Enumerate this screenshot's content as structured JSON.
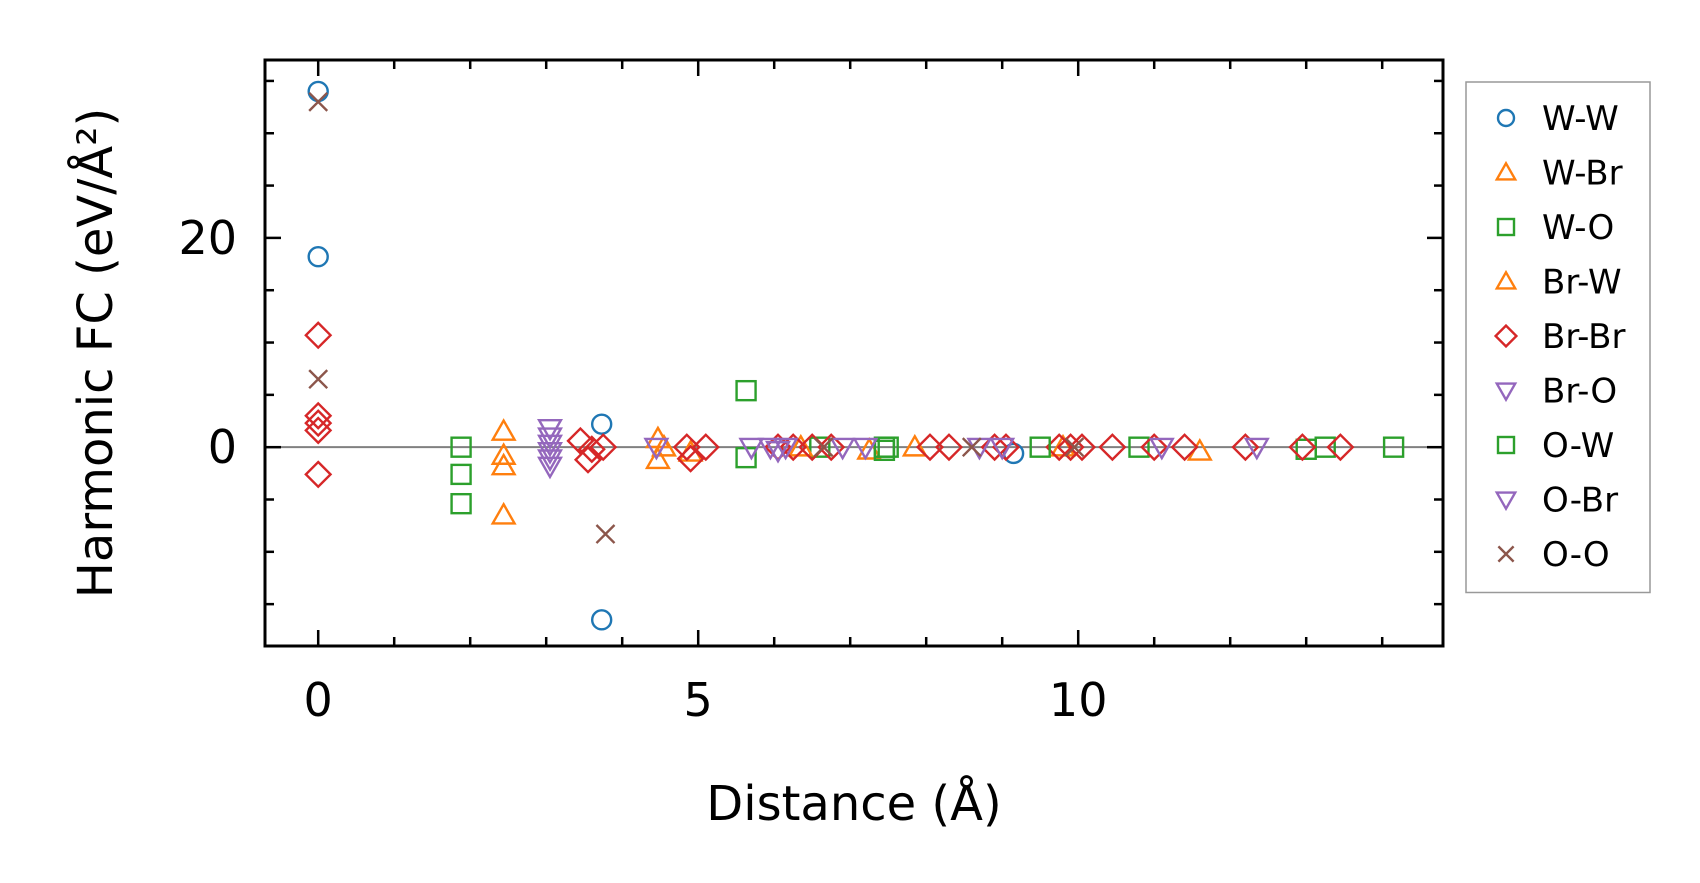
{
  "chart_data": {
    "type": "scatter",
    "xlabel": "Distance (Å)",
    "ylabel": "Harmonic FC (eV/Å²)",
    "xlim": [
      -0.7,
      14.8
    ],
    "ylim": [
      -19,
      37
    ],
    "xticks": [
      0,
      5,
      10
    ],
    "xtick_labels": [
      "0",
      "5",
      "10"
    ],
    "yticks": [
      0,
      20
    ],
    "ytick_labels": [
      "0",
      "20"
    ],
    "x_minor_step": 1,
    "y_minor_step": 5,
    "zero_line": true,
    "grid": false,
    "legend_position": "outside-right",
    "series": [
      {
        "name": "W-W",
        "marker": "circle",
        "color": "#1f77b4",
        "x": [
          0,
          0,
          3.73,
          3.73,
          9.15
        ],
        "y": [
          34,
          18.2,
          2.2,
          -16.5,
          -0.6
        ]
      },
      {
        "name": "W-Br",
        "marker": "triangle-up",
        "color": "#ff7f0e",
        "x": [
          2.44,
          2.44,
          2.44,
          2.44,
          4.47,
          4.47,
          7.25,
          7.85,
          11.6
        ],
        "y": [
          1.5,
          -0.8,
          -1.8,
          -6.5,
          0.8,
          -1.2,
          -0.3,
          0,
          -0.4
        ]
      },
      {
        "name": "W-O",
        "marker": "square",
        "color": "#2ca02c",
        "x": [
          1.88,
          1.88,
          1.88,
          5.63,
          5.63,
          6.6,
          7.45,
          7.45,
          10.8,
          13.0,
          13.25,
          14.15
        ],
        "y": [
          0,
          -2.6,
          -5.4,
          5.4,
          -1.0,
          0,
          0,
          -0.3,
          0,
          -0.2,
          0,
          0
        ]
      },
      {
        "name": "Br-W",
        "marker": "triangle-up",
        "color": "#ff7f0e",
        "x": [
          4.55,
          4.9,
          6.35,
          9.8
        ],
        "y": [
          0,
          -0.5,
          0,
          0
        ]
      },
      {
        "name": "Br-Br",
        "marker": "diamond",
        "color": "#d62728",
        "x": [
          0,
          0,
          0,
          0,
          0,
          3.45,
          3.55,
          3.6,
          3.75,
          4.85,
          4.9,
          5.1,
          6.05,
          6.25,
          6.5,
          6.75,
          8.05,
          8.3,
          8.9,
          9.05,
          9.75,
          9.9,
          10.05,
          10.45,
          11.0,
          11.4,
          12.2,
          12.95,
          13.45
        ],
        "y": [
          10.7,
          3,
          2.3,
          1.6,
          -2.6,
          0.6,
          -1.2,
          -0.2,
          0,
          0,
          -1.1,
          0,
          0,
          0,
          0,
          0,
          0,
          0,
          0,
          0,
          0,
          0,
          0,
          0,
          0,
          0,
          0,
          0,
          0
        ]
      },
      {
        "name": "Br-O",
        "marker": "triangle-down",
        "color": "#9467bd",
        "x": [
          3.05,
          3.05,
          3.05,
          3.05,
          3.05,
          3.05,
          4.45,
          6.15,
          6.9,
          9.0,
          11.1
        ],
        "y": [
          1.8,
          1.0,
          0.3,
          -0.4,
          -1.1,
          -1.8,
          0,
          0,
          0,
          0,
          0
        ]
      },
      {
        "name": "O-W",
        "marker": "square",
        "color": "#2ca02c",
        "x": [
          7.5,
          9.5
        ],
        "y": [
          0,
          0
        ]
      },
      {
        "name": "O-Br",
        "marker": "triangle-down",
        "color": "#9467bd",
        "x": [
          5.7,
          5.95,
          6.05,
          7.2,
          8.7,
          12.35
        ],
        "y": [
          0,
          0,
          -0.3,
          0,
          0,
          0
        ]
      },
      {
        "name": "O-O",
        "marker": "x",
        "color": "#8c564b",
        "x": [
          0,
          0,
          3.78,
          6.65,
          8.6,
          9.95
        ],
        "y": [
          33,
          6.5,
          -8.3,
          0,
          0,
          0
        ]
      }
    ]
  }
}
